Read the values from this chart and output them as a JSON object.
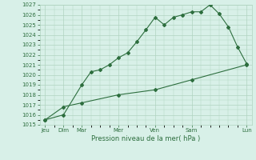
{
  "title": "",
  "xlabel": "Pression niveau de la mer( hPa )",
  "ylabel": "",
  "background_color": "#d8f0e8",
  "grid_color": "#b0d4c0",
  "line_color": "#2d6e3e",
  "ylim": [
    1015,
    1027
  ],
  "yticks": [
    1015,
    1016,
    1017,
    1018,
    1019,
    1020,
    1021,
    1022,
    1023,
    1024,
    1025,
    1026,
    1027
  ],
  "x_major_labels": [
    "Jeu",
    "Dim",
    "Mar",
    "Mer",
    "Ven",
    "Sam",
    "Lun"
  ],
  "x_major_positions": [
    0,
    1,
    2,
    4,
    6,
    8,
    11
  ],
  "line1_x": [
    0,
    1,
    2,
    2.5,
    3,
    3.5,
    4,
    4.5,
    5,
    5.5,
    6,
    6.5,
    7,
    7.5,
    8,
    8.5,
    9,
    9.5,
    10,
    10.5,
    11
  ],
  "line1_y": [
    1015.5,
    1016.0,
    1019.0,
    1020.3,
    1020.5,
    1021.0,
    1021.7,
    1022.2,
    1023.3,
    1024.5,
    1025.75,
    1025.0,
    1025.75,
    1026.0,
    1026.3,
    1026.3,
    1027.0,
    1026.1,
    1024.8,
    1022.8,
    1021.1
  ],
  "line2_x": [
    0,
    1,
    2,
    4,
    6,
    8,
    11
  ],
  "line2_y": [
    1015.5,
    1016.8,
    1017.2,
    1018.0,
    1018.5,
    1019.5,
    1021.0
  ],
  "marker": "D",
  "markersize": 2.0,
  "linewidth": 0.8,
  "tick_fontsize": 5.0,
  "xlabel_fontsize": 6.0
}
